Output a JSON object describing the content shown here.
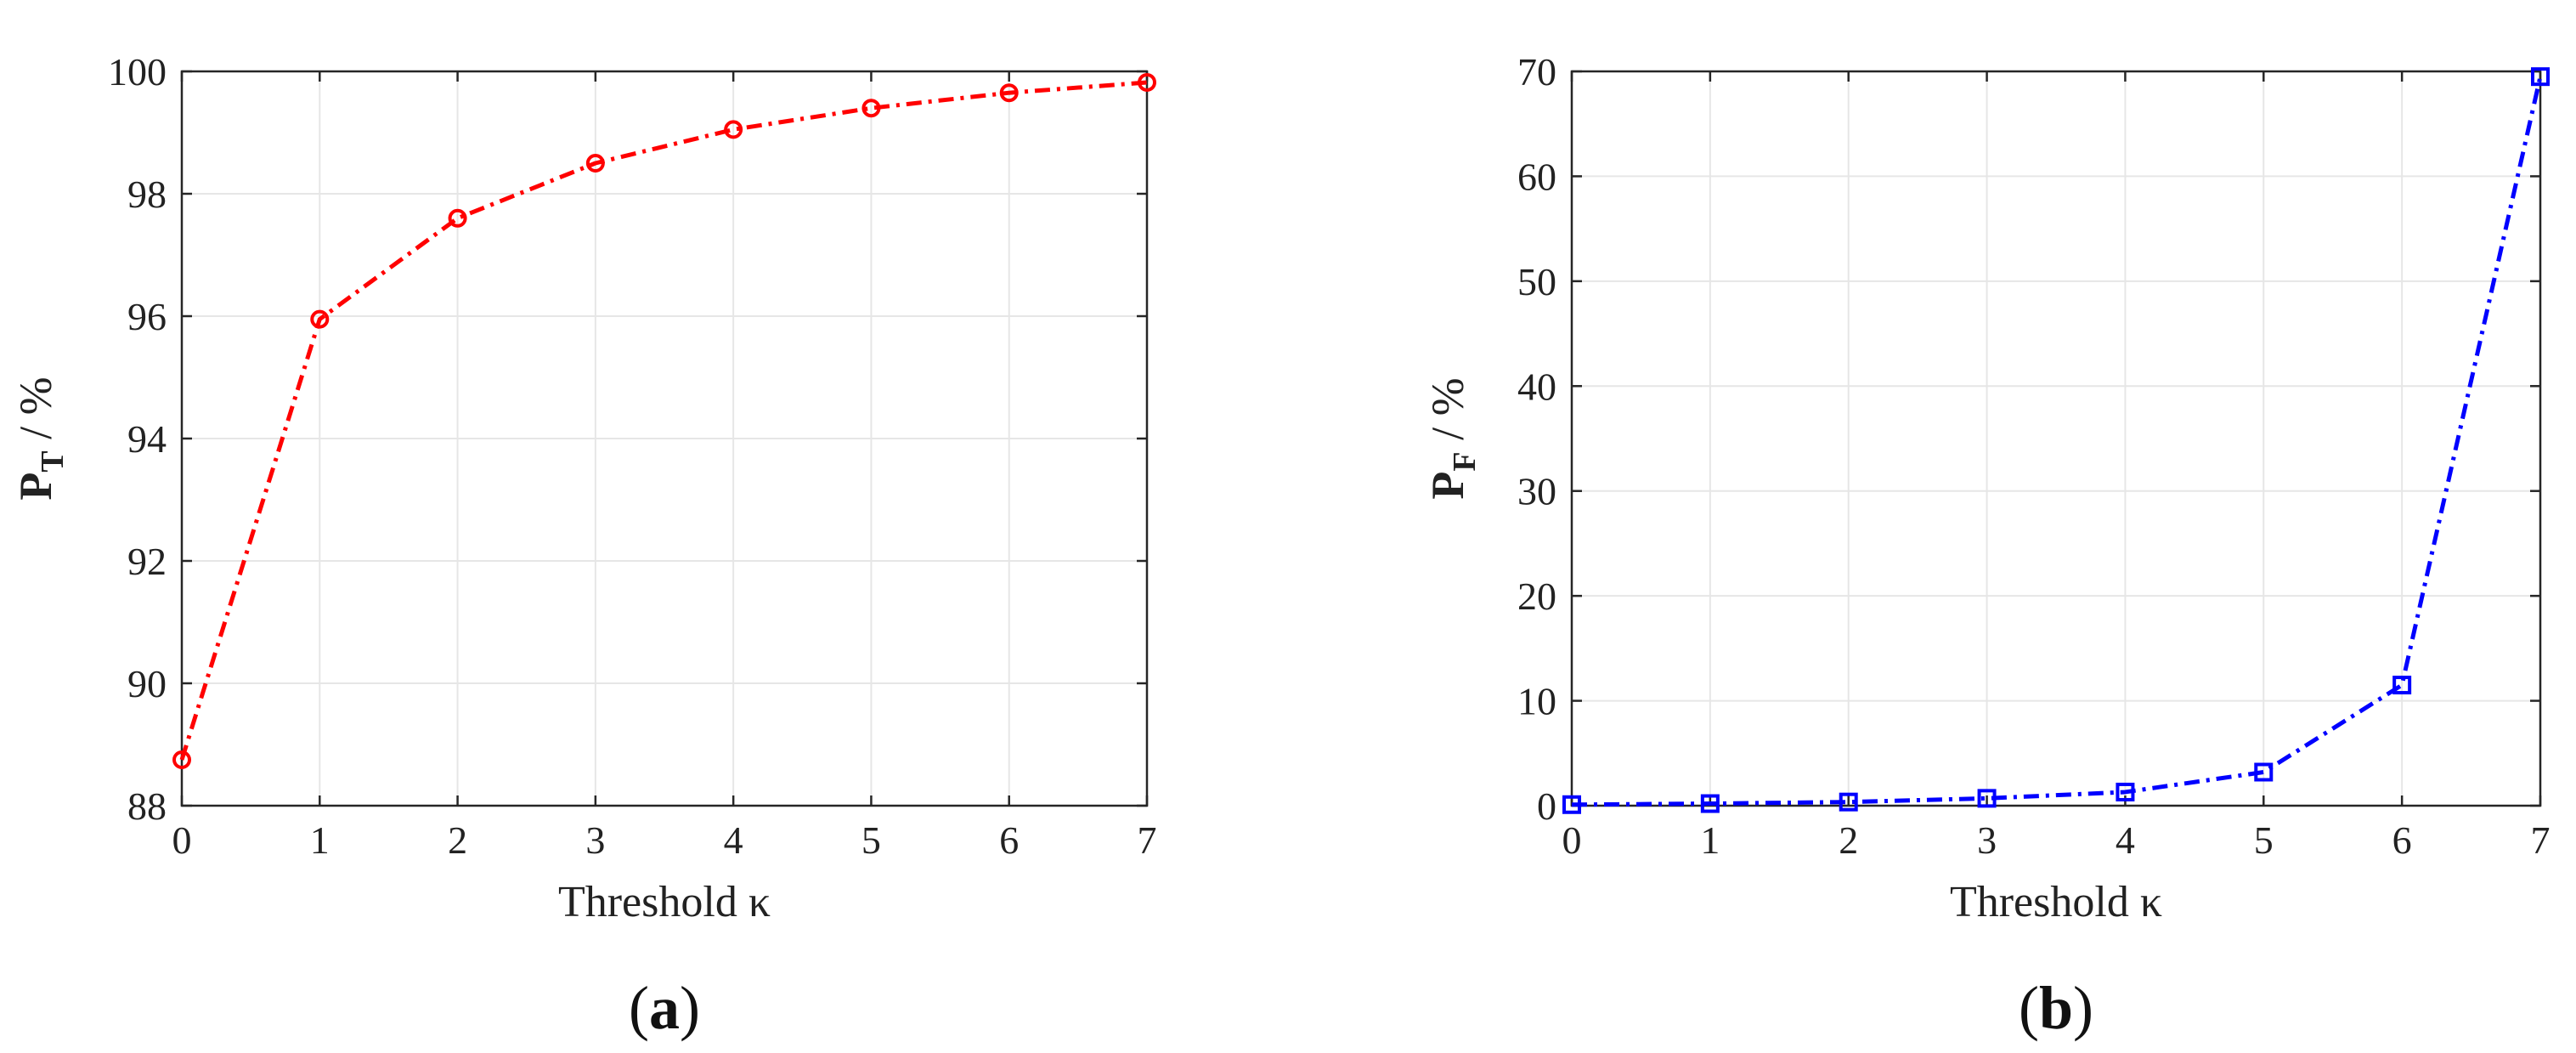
{
  "chart_data": [
    {
      "type": "line",
      "panel_label_open": "(",
      "panel_letter": "a",
      "panel_label_close": ")",
      "xlabel": "Threshold κ",
      "ylabel_main": "P",
      "ylabel_sub": "T",
      "ylabel_rest": " / %",
      "xlim": [
        0,
        7
      ],
      "ylim": [
        88,
        100
      ],
      "xticks": [
        0,
        1,
        2,
        3,
        4,
        5,
        6,
        7
      ],
      "yticks": [
        88,
        90,
        92,
        94,
        96,
        98,
        100
      ],
      "grid": true,
      "series": [
        {
          "color": "#ff0000",
          "marker": "circle",
          "line_style": "dash-dot",
          "x": [
            0,
            1,
            2,
            3,
            4,
            5,
            6,
            7
          ],
          "y": [
            88.75,
            95.95,
            97.6,
            98.5,
            99.05,
            99.4,
            99.65,
            99.82
          ]
        }
      ]
    },
    {
      "type": "line",
      "panel_label_open": "(",
      "panel_letter": "b",
      "panel_label_close": ")",
      "xlabel": "Threshold κ",
      "ylabel_main": "P",
      "ylabel_sub": "F",
      "ylabel_rest": " / %",
      "xlim": [
        0,
        7
      ],
      "ylim": [
        0,
        70
      ],
      "xticks": [
        0,
        1,
        2,
        3,
        4,
        5,
        6,
        7
      ],
      "yticks": [
        0,
        10,
        20,
        30,
        40,
        50,
        60,
        70
      ],
      "grid": true,
      "series": [
        {
          "color": "#0000ff",
          "marker": "square",
          "line_style": "dash-dot",
          "x": [
            0,
            1,
            2,
            3,
            4,
            5,
            6,
            7
          ],
          "y": [
            0.1,
            0.2,
            0.35,
            0.7,
            1.3,
            3.2,
            11.5,
            69.5
          ]
        }
      ]
    }
  ]
}
